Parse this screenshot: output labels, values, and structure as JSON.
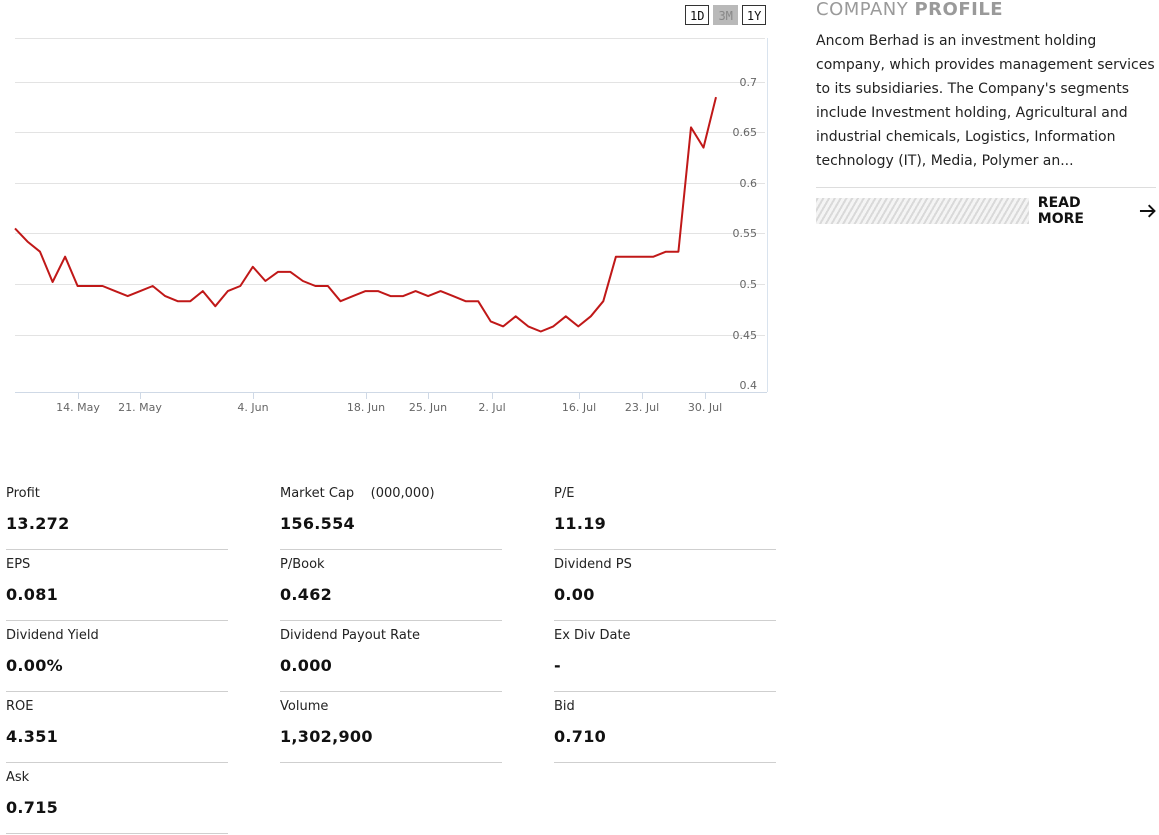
{
  "range_buttons": [
    "1D",
    "3M",
    "1Y"
  ],
  "active_range": "3M",
  "chart_data": {
    "type": "line",
    "line_color": "#c01818",
    "ylim": [
      0.4,
      0.7
    ],
    "y_ticks": [
      "0.7",
      "0.65",
      "0.6",
      "0.55",
      "0.5",
      "0.45",
      "0.4"
    ],
    "x_ticks": [
      "14. May",
      "21. May",
      "4. Jun",
      "18. Jun",
      "25. Jun",
      "2. Jul",
      "16. Jul",
      "23. Jul",
      "30. Jul"
    ],
    "series": [
      {
        "values": [
          0.555,
          0.542,
          0.532,
          0.502,
          0.527,
          0.498,
          0.498,
          0.498,
          0.493,
          0.488,
          0.493,
          0.498,
          0.488,
          0.483,
          0.483,
          0.493,
          0.478,
          0.493,
          0.498,
          0.517,
          0.503,
          0.512,
          0.512,
          0.503,
          0.498,
          0.498,
          0.483,
          0.488,
          0.493,
          0.493,
          0.488,
          0.488,
          0.493,
          0.488,
          0.493,
          0.488,
          0.483,
          0.483,
          0.463,
          0.458,
          0.468,
          0.458,
          0.453,
          0.458,
          0.468,
          0.458,
          0.468,
          0.483,
          0.527,
          0.527,
          0.527,
          0.527,
          0.532,
          0.532,
          0.655,
          0.635,
          0.685
        ]
      }
    ]
  },
  "profile": {
    "title_light": "COMPANY",
    "title_bold": "PROFILE",
    "description": "Ancom Berhad is an investment holding company, which provides management services to its subsidiaries. The Company's segments include Investment holding, Agricultural and industrial chemicals, Logistics, Information technology (IT), Media, Polymer an...",
    "read_more": "READ MORE"
  },
  "stats": [
    {
      "label": "Profit",
      "value": "13.272"
    },
    {
      "label": "Market Cap    (000,000)",
      "value": "156.554"
    },
    {
      "label": "P/E",
      "value": "11.19"
    },
    {
      "label": "EPS",
      "value": "0.081"
    },
    {
      "label": "P/Book",
      "value": "0.462"
    },
    {
      "label": "Dividend PS",
      "value": "0.00"
    },
    {
      "label": "Dividend Yield",
      "value": "0.00%"
    },
    {
      "label": "Dividend Payout Rate",
      "value": "0.000"
    },
    {
      "label": "Ex Div Date",
      "value": "-"
    },
    {
      "label": "ROE",
      "value": "4.351"
    },
    {
      "label": "Volume",
      "value": "1,302,900"
    },
    {
      "label": "Bid",
      "value": "0.710"
    },
    {
      "label": "Ask",
      "value": "0.715"
    }
  ]
}
